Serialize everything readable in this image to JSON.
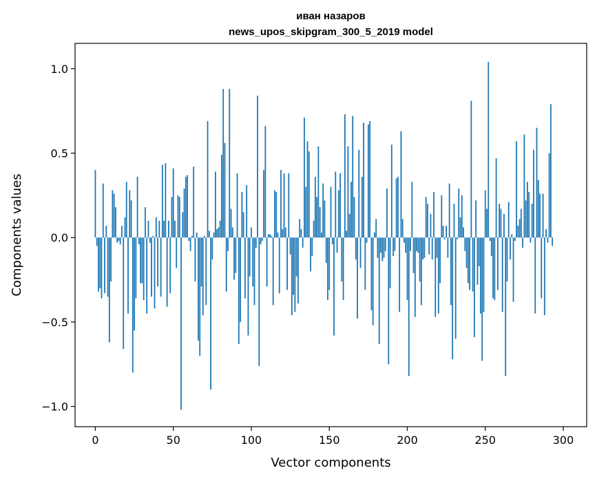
{
  "chart_data": {
    "type": "bar",
    "title": "иван назаров",
    "subtitle": "news_upos_skipgram_300_5_2019 model",
    "xlabel": "Vector components",
    "ylabel": "Components values",
    "xlim": [
      -13,
      315
    ],
    "ylim": [
      -1.12,
      1.15
    ],
    "xticks": [
      0,
      50,
      100,
      150,
      200,
      250,
      300
    ],
    "xtick_labels": [
      "0",
      "50",
      "100",
      "150",
      "200",
      "250",
      "300"
    ],
    "yticks": [
      -1.0,
      -0.5,
      0.0,
      0.5,
      1.0
    ],
    "ytick_labels": [
      "−1.0",
      "−0.5",
      "0.0",
      "0.5",
      "1.0"
    ],
    "grid": false,
    "bar_color": "#1f77b4",
    "values": [
      0.4,
      -0.05,
      -0.32,
      -0.3,
      -0.36,
      0.32,
      -0.33,
      0.07,
      -0.35,
      -0.62,
      -0.26,
      0.28,
      0.26,
      0.18,
      -0.03,
      -0.02,
      -0.04,
      0.07,
      -0.66,
      0.12,
      0.33,
      -0.45,
      0.28,
      0.22,
      -0.8,
      -0.55,
      -0.36,
      0.36,
      -0.04,
      -0.27,
      -0.27,
      -0.37,
      0.18,
      -0.45,
      0.1,
      -0.03,
      -0.35,
      0.01,
      -0.42,
      0.12,
      -0.29,
      0.1,
      -0.35,
      0.43,
      0.1,
      0.44,
      -0.41,
      0.1,
      -0.33,
      0.24,
      0.41,
      0.1,
      -0.18,
      0.25,
      0.24,
      -1.02,
      0.15,
      0.29,
      0.36,
      0.37,
      -0.02,
      -0.08,
      0.01,
      0.42,
      -0.26,
      0.03,
      -0.61,
      -0.7,
      -0.29,
      -0.46,
      0.01,
      -0.4,
      0.69,
      0.04,
      -0.9,
      -0.13,
      0.03,
      0.39,
      0.05,
      0.06,
      0.1,
      0.49,
      0.88,
      0.56,
      -0.32,
      -0.08,
      0.88,
      0.17,
      0.06,
      -0.25,
      -0.21,
      0.38,
      -0.63,
      -0.5,
      0.27,
      0.15,
      -0.36,
      0.31,
      -0.58,
      -0.23,
      0.06,
      -0.29,
      -0.4,
      -0.06,
      0.84,
      -0.76,
      -0.04,
      -0.02,
      0.4,
      0.66,
      -0.29,
      0.02,
      0.02,
      0.01,
      -0.4,
      0.28,
      0.27,
      0.03,
      -0.33,
      0.4,
      0.05,
      0.38,
      0.06,
      -0.31,
      0.38,
      -0.1,
      -0.46,
      -0.34,
      -0.44,
      -0.23,
      -0.39,
      0.11,
      0.05,
      -0.06,
      0.71,
      0.3,
      0.57,
      0.51,
      -0.2,
      -0.11,
      0.1,
      0.36,
      0.24,
      0.54,
      0.18,
      0.03,
      0.32,
      0.22,
      -0.15,
      -0.37,
      -0.31,
      0.3,
      -0.04,
      -0.58,
      0.39,
      -0.09,
      0.28,
      0.38,
      -0.26,
      -0.37,
      0.73,
      0.04,
      0.54,
      0.14,
      0.33,
      0.72,
      0.24,
      -0.13,
      -0.48,
      0.52,
      -0.18,
      0.36,
      0.68,
      -0.31,
      -0.03,
      0.67,
      0.69,
      -0.43,
      -0.52,
      0.03,
      0.11,
      -0.12,
      -0.63,
      -0.09,
      -0.14,
      -0.12,
      -0.08,
      0.29,
      -0.75,
      -0.3,
      0.55,
      -0.11,
      -0.08,
      0.35,
      0.36,
      -0.44,
      0.63,
      0.11,
      -0.03,
      -0.09,
      -0.37,
      -0.82,
      -0.08,
      0.33,
      -0.21,
      -0.47,
      -0.08,
      -0.09,
      -0.26,
      -0.4,
      -0.13,
      -0.12,
      0.24,
      0.2,
      -0.1,
      0.14,
      -0.13,
      0.27,
      -0.47,
      -0.12,
      -0.45,
      -0.27,
      0.25,
      0.07,
      -0.01,
      0.07,
      -0.12,
      0.32,
      -0.4,
      -0.72,
      0.2,
      -0.6,
      -0.01,
      0.29,
      0.12,
      0.25,
      0.06,
      -0.08,
      -0.18,
      -0.27,
      -0.31,
      0.81,
      -0.32,
      -0.59,
      0.22,
      -0.28,
      -0.17,
      -0.45,
      -0.73,
      -0.44,
      0.28,
      0.17,
      1.04,
      -0.02,
      -0.11,
      -0.36,
      -0.37,
      0.47,
      -0.31,
      0.2,
      0.17,
      -0.44,
      0.14,
      -0.82,
      -0.26,
      0.21,
      -0.13,
      0.02,
      -0.38,
      -0.02,
      0.57,
      0.07,
      0.11,
      0.17,
      -0.06,
      0.61,
      0.22,
      0.33,
      0.27,
      -0.03,
      0.2,
      0.52,
      -0.45,
      0.65,
      0.34,
      0.26,
      -0.36,
      0.26,
      -0.46,
      0.05,
      -0.03,
      0.5,
      0.79,
      -0.05
    ]
  }
}
